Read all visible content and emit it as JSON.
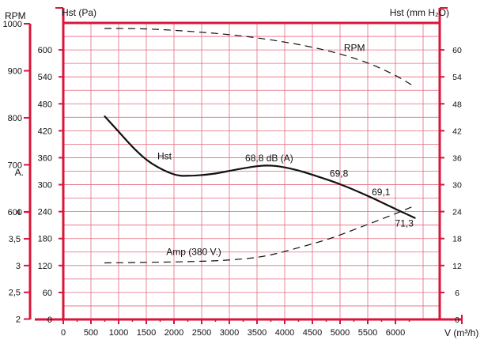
{
  "chart_data": {
    "type": "line",
    "colors": {
      "axes": "#d9163a",
      "grid": "#e46a7e",
      "curve": "#111111"
    },
    "grid": true,
    "x": {
      "label": "V (m³/h)",
      "range": [
        0,
        6800
      ],
      "ticks": [
        "0",
        "500",
        "1000",
        "1500",
        "2000",
        "2500",
        "3000",
        "3500",
        "4000",
        "4500",
        "5000",
        "5500",
        "6000"
      ]
    },
    "axes": {
      "hst_pa": {
        "label": "Hst (Pa)",
        "range": [
          0,
          660
        ],
        "ticks": [
          "0",
          "60",
          "120",
          "180",
          "240",
          "300",
          "360",
          "420",
          "480",
          "540",
          "600"
        ]
      },
      "hst_mm": {
        "label": "Hst (mm H₂O)",
        "range": [
          0,
          66
        ],
        "ticks": [
          "0",
          "6",
          "12",
          "18",
          "24",
          "30",
          "36",
          "42",
          "48",
          "54",
          "60"
        ]
      },
      "rpm": {
        "label": "RPM",
        "range": [
          600,
          1000
        ],
        "ticks": [
          "600",
          "700",
          "800",
          "900",
          "1000"
        ]
      },
      "amp": {
        "label": "A.",
        "range": [
          2,
          4.4
        ],
        "ticks": [
          "2",
          "2,5",
          "3",
          "3,5",
          "4"
        ]
      }
    },
    "series": [
      {
        "name": "Hst",
        "axis": "hst_pa",
        "style": "solid",
        "x": [
          750,
          1000,
          1300,
          1600,
          2000,
          2300,
          2700,
          3100,
          3500,
          3800,
          4200,
          4600,
          5000,
          5500,
          6000,
          6350
        ],
        "y": [
          452,
          418,
          378,
          347,
          323,
          320,
          324,
          333,
          341,
          342,
          333,
          318,
          301,
          275,
          246,
          226
        ]
      },
      {
        "name": "RPM",
        "axis": "rpm",
        "style": "dashed",
        "x": [
          750,
          1500,
          2500,
          3500,
          4500,
          5300,
          5900,
          6350
        ],
        "y": [
          990,
          989,
          982,
          970,
          950,
          925,
          896,
          866
        ]
      },
      {
        "name": "Amp (380 V.)",
        "axis": "amp",
        "style": "dashed",
        "x": [
          750,
          1500,
          2500,
          3200,
          3700,
          4200,
          4800,
          5400,
          6000,
          6350
        ],
        "y": [
          3.05,
          3.06,
          3.08,
          3.12,
          3.19,
          3.32,
          3.5,
          3.73,
          3.97,
          4.12
        ]
      }
    ],
    "annotations": [
      {
        "text": "68,8 dB (A)",
        "x": 3720,
        "y": 352
      },
      {
        "text": "69,8",
        "x": 4980,
        "y": 318
      },
      {
        "text": "69,1",
        "x": 5740,
        "y": 276
      },
      {
        "text": "71,3",
        "x": 6160,
        "y": 207
      }
    ]
  }
}
